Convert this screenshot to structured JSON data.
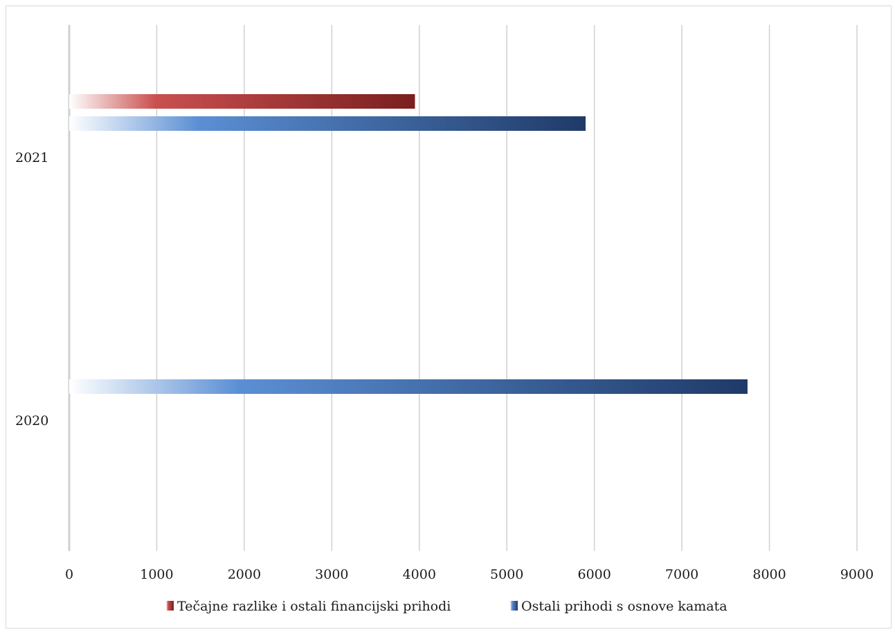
{
  "chart_data": {
    "type": "bar",
    "orientation": "horizontal",
    "categories": [
      "2021",
      "2020"
    ],
    "series": [
      {
        "name": "Tečajne razlike i ostali financijski prihodi",
        "values": [
          3950,
          null
        ],
        "color": "#7a1f1f",
        "gradient_start": "#ffffff",
        "gradient_mid": "#c9504f"
      },
      {
        "name": "Ostali prihodi s osnove kamata",
        "values": [
          5900,
          7750
        ],
        "color": "#1f3a68",
        "gradient_start": "#ffffff",
        "gradient_mid": "#5b8fd4"
      }
    ],
    "xlim": [
      0,
      9000
    ],
    "x_ticks": [
      "0",
      "1000",
      "2000",
      "3000",
      "4000",
      "5000",
      "6000",
      "7000",
      "8000",
      "9000"
    ],
    "grid": true,
    "legend": "bottom"
  }
}
